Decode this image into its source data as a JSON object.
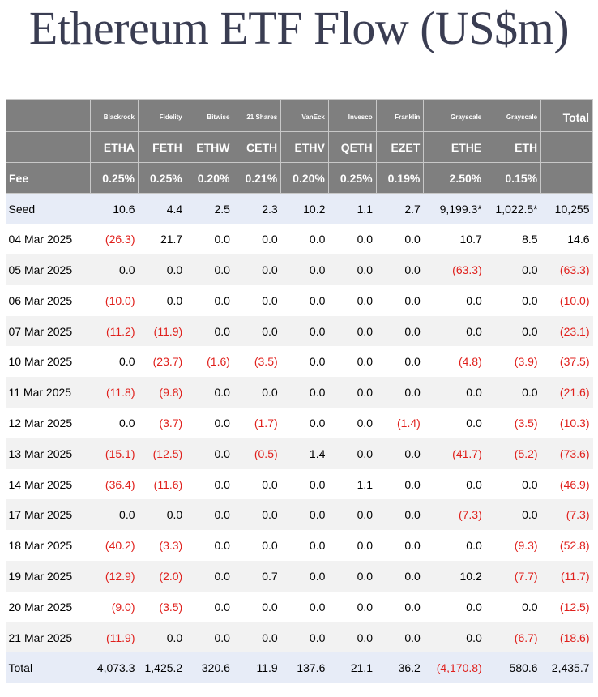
{
  "title": "Ethereum ETF Flow (US$m)",
  "header": {
    "issuers": [
      "Blackrock",
      "Fidelity",
      "Bitwise",
      "21 Shares",
      "VanEck",
      "Invesco",
      "Franklin",
      "Grayscale",
      "Grayscale"
    ],
    "total_label": "Total",
    "tickers": [
      "ETHA",
      "FETH",
      "ETHW",
      "CETH",
      "ETHV",
      "QETH",
      "EZET",
      "ETHE",
      "ETH"
    ],
    "fee_label": "Fee",
    "fees": [
      "0.25%",
      "0.25%",
      "0.20%",
      "0.21%",
      "0.20%",
      "0.25%",
      "0.19%",
      "2.50%",
      "0.15%"
    ]
  },
  "rows": [
    {
      "label": "Seed",
      "kind": "seed",
      "values": [
        "10.6",
        "4.4",
        "2.5",
        "2.3",
        "10.2",
        "1.1",
        "2.7",
        "9,199.3*",
        "1,022.5*",
        "10,255"
      ]
    },
    {
      "label": "04 Mar 2025",
      "values": [
        "(26.3)",
        "21.7",
        "0.0",
        "0.0",
        "0.0",
        "0.0",
        "0.0",
        "10.7",
        "8.5",
        "14.6"
      ]
    },
    {
      "label": "05 Mar 2025",
      "values": [
        "0.0",
        "0.0",
        "0.0",
        "0.0",
        "0.0",
        "0.0",
        "0.0",
        "(63.3)",
        "0.0",
        "(63.3)"
      ]
    },
    {
      "label": "06 Mar 2025",
      "values": [
        "(10.0)",
        "0.0",
        "0.0",
        "0.0",
        "0.0",
        "0.0",
        "0.0",
        "0.0",
        "0.0",
        "(10.0)"
      ]
    },
    {
      "label": "07 Mar 2025",
      "values": [
        "(11.2)",
        "(11.9)",
        "0.0",
        "0.0",
        "0.0",
        "0.0",
        "0.0",
        "0.0",
        "0.0",
        "(23.1)"
      ]
    },
    {
      "label": "10 Mar 2025",
      "values": [
        "0.0",
        "(23.7)",
        "(1.6)",
        "(3.5)",
        "0.0",
        "0.0",
        "0.0",
        "(4.8)",
        "(3.9)",
        "(37.5)"
      ]
    },
    {
      "label": "11 Mar 2025",
      "values": [
        "(11.8)",
        "(9.8)",
        "0.0",
        "0.0",
        "0.0",
        "0.0",
        "0.0",
        "0.0",
        "0.0",
        "(21.6)"
      ]
    },
    {
      "label": "12 Mar 2025",
      "values": [
        "0.0",
        "(3.7)",
        "0.0",
        "(1.7)",
        "0.0",
        "0.0",
        "(1.4)",
        "0.0",
        "(3.5)",
        "(10.3)"
      ]
    },
    {
      "label": "13 Mar 2025",
      "values": [
        "(15.1)",
        "(12.5)",
        "0.0",
        "(0.5)",
        "1.4",
        "0.0",
        "0.0",
        "(41.7)",
        "(5.2)",
        "(73.6)"
      ]
    },
    {
      "label": "14 Mar 2025",
      "values": [
        "(36.4)",
        "(11.6)",
        "0.0",
        "0.0",
        "0.0",
        "1.1",
        "0.0",
        "0.0",
        "0.0",
        "(46.9)"
      ]
    },
    {
      "label": "17 Mar 2025",
      "values": [
        "0.0",
        "0.0",
        "0.0",
        "0.0",
        "0.0",
        "0.0",
        "0.0",
        "(7.3)",
        "0.0",
        "(7.3)"
      ]
    },
    {
      "label": "18 Mar 2025",
      "values": [
        "(40.2)",
        "(3.3)",
        "0.0",
        "0.0",
        "0.0",
        "0.0",
        "0.0",
        "0.0",
        "(9.3)",
        "(52.8)"
      ]
    },
    {
      "label": "19 Mar 2025",
      "values": [
        "(12.9)",
        "(2.0)",
        "0.0",
        "0.7",
        "0.0",
        "0.0",
        "0.0",
        "10.2",
        "(7.7)",
        "(11.7)"
      ]
    },
    {
      "label": "20 Mar 2025",
      "values": [
        "(9.0)",
        "(3.5)",
        "0.0",
        "0.0",
        "0.0",
        "0.0",
        "0.0",
        "0.0",
        "0.0",
        "(12.5)"
      ]
    },
    {
      "label": "21 Mar 2025",
      "values": [
        "(11.9)",
        "0.0",
        "0.0",
        "0.0",
        "0.0",
        "0.0",
        "0.0",
        "0.0",
        "(6.7)",
        "(18.6)"
      ]
    },
    {
      "label": "Total",
      "kind": "total",
      "values": [
        "4,073.3",
        "1,425.2",
        "320.6",
        "11.9",
        "137.6",
        "21.1",
        "36.2",
        "(4,170.8)",
        "580.6",
        "2,435.7"
      ]
    }
  ],
  "colors": {
    "header_bg": "#7f7f7f",
    "negative": "#e0201c",
    "highlight_row": "#e7ecf7",
    "title": "#3a3d52"
  }
}
